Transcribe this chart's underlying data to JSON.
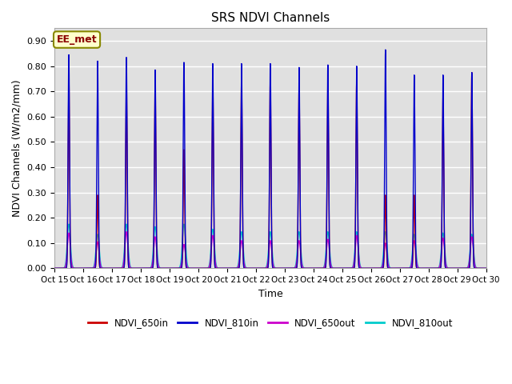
{
  "title": "SRS NDVI Channels",
  "xlabel": "Time",
  "ylabel": "NDVI Channels (W/m2/mm)",
  "ylim": [
    0.0,
    0.95
  ],
  "yticks": [
    0.0,
    0.1,
    0.2,
    0.3,
    0.4,
    0.5,
    0.6,
    0.7,
    0.8,
    0.9
  ],
  "xtick_labels": [
    "Oct 15",
    "Oct 16",
    "Oct 17",
    "Oct 18",
    "Oct 19",
    "Oct 20",
    "Oct 21",
    "Oct 22",
    "Oct 23",
    "Oct 24",
    "Oct 25",
    "Oct 26",
    "Oct 27",
    "Oct 28",
    "Oct 29",
    "Oct 30"
  ],
  "annotation_text": "EE_met",
  "colors": {
    "NDVI_650in": "#cc0000",
    "NDVI_810in": "#0000cc",
    "NDVI_650out": "#cc00cc",
    "NDVI_810out": "#00cccc"
  },
  "background_color": "#e0e0e0",
  "peak_810in": [
    0.845,
    0.82,
    0.835,
    0.785,
    0.815,
    0.81,
    0.81,
    0.81,
    0.795,
    0.805,
    0.8,
    0.865,
    0.765,
    0.765,
    0.775
  ],
  "peak_650in": [
    0.77,
    0.29,
    0.75,
    0.73,
    0.47,
    0.75,
    0.745,
    0.75,
    0.72,
    0.745,
    0.745,
    0.29,
    0.29,
    0.68,
    0.775
  ],
  "peak_650out": [
    0.14,
    0.105,
    0.145,
    0.125,
    0.095,
    0.13,
    0.11,
    0.11,
    0.11,
    0.115,
    0.13,
    0.1,
    0.11,
    0.12,
    0.125
  ],
  "peak_810out": [
    0.175,
    0.135,
    0.175,
    0.165,
    0.175,
    0.155,
    0.145,
    0.145,
    0.145,
    0.145,
    0.145,
    0.145,
    0.135,
    0.14,
    0.135
  ],
  "narrow_sigma": 0.025,
  "wide_sigma": 0.05
}
